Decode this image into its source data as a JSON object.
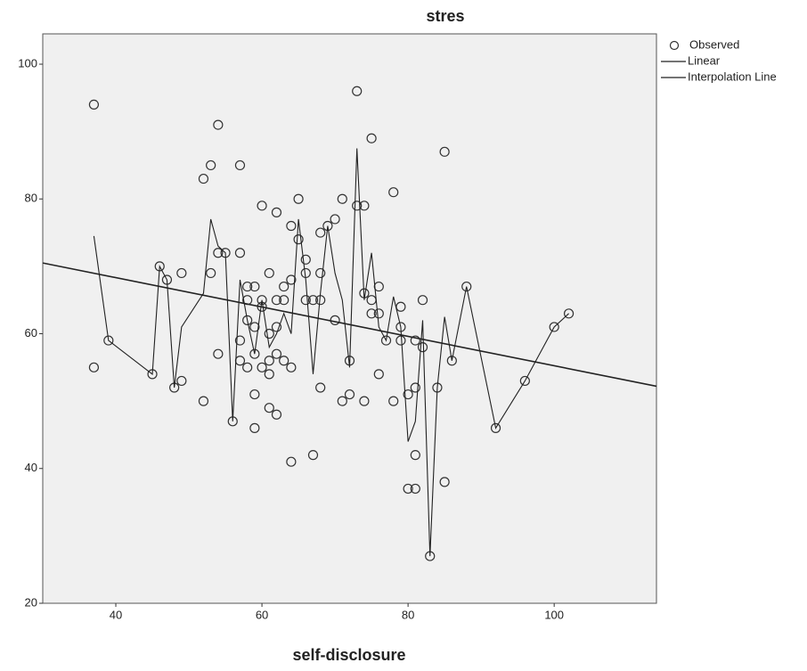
{
  "chart_data": {
    "type": "scatter",
    "title": "stres",
    "x_label": "self-disclosure",
    "xlim": [
      30,
      114
    ],
    "ylim": [
      20,
      104.5
    ],
    "xticks": [
      40,
      60,
      80,
      100
    ],
    "yticks": [
      20,
      40,
      60,
      80,
      100
    ],
    "grid": false,
    "legend_position": "outside-right",
    "background": "#f0f0f0",
    "series": [
      {
        "name": "Observed",
        "kind": "scatter",
        "color": "#333333",
        "x": [
          37,
          37,
          39,
          45,
          46,
          47,
          48,
          49,
          49,
          52,
          52,
          53,
          53,
          54,
          54,
          54,
          55,
          56,
          57,
          57,
          57,
          57,
          58,
          58,
          58,
          58,
          59,
          59,
          59,
          59,
          59,
          60,
          60,
          60,
          60,
          61,
          61,
          61,
          61,
          61,
          62,
          62,
          62,
          62,
          62,
          63,
          63,
          63,
          64,
          64,
          64,
          64,
          65,
          65,
          66,
          66,
          66,
          67,
          67,
          68,
          68,
          68,
          68,
          69,
          70,
          70,
          71,
          71,
          72,
          72,
          73,
          73,
          74,
          74,
          74,
          75,
          75,
          75,
          76,
          76,
          76,
          77,
          78,
          78,
          79,
          79,
          79,
          80,
          80,
          81,
          81,
          81,
          81,
          82,
          82,
          83,
          84,
          85,
          85,
          86,
          88,
          92,
          96,
          100,
          102
        ],
        "values": [
          94,
          55,
          59,
          54,
          70,
          68,
          52,
          69,
          53,
          83,
          50,
          85,
          69,
          91,
          72,
          57,
          72,
          47,
          85,
          72,
          59,
          56,
          67,
          65,
          62,
          55,
          67,
          61,
          57,
          51,
          46,
          79,
          65,
          64,
          55,
          69,
          60,
          56,
          54,
          49,
          78,
          65,
          61,
          57,
          48,
          67,
          65,
          56,
          76,
          68,
          55,
          41,
          80,
          74,
          71,
          69,
          65,
          42,
          65,
          75,
          69,
          65,
          52,
          76,
          77,
          62,
          80,
          50,
          56,
          51,
          96,
          79,
          79,
          66,
          50,
          89,
          65,
          63,
          67,
          63,
          54,
          59,
          81,
          50,
          64,
          61,
          59,
          51,
          37,
          59,
          52,
          42,
          37,
          65,
          58,
          27,
          52,
          87,
          38,
          56,
          67,
          46,
          53,
          61,
          63
        ]
      },
      {
        "name": "Linear",
        "kind": "line",
        "color": "#222222",
        "x": [
          30,
          114
        ],
        "values": [
          70.5,
          52.2
        ]
      },
      {
        "name": "Interpolation Line",
        "kind": "line",
        "color": "#222222",
        "x": [
          37,
          39,
          45,
          46,
          47,
          48,
          49,
          52,
          53,
          54,
          55,
          56,
          57,
          58,
          59,
          60,
          61,
          62,
          63,
          64,
          65,
          66,
          67,
          68,
          69,
          70,
          71,
          72,
          73,
          74,
          75,
          76,
          77,
          78,
          79,
          80,
          81,
          82,
          83,
          84,
          85,
          86,
          88,
          92,
          96,
          100,
          102
        ],
        "values": [
          74.5,
          59,
          54,
          70,
          68,
          52,
          61,
          66,
          77,
          73,
          72,
          47,
          68,
          62,
          57,
          65,
          58,
          60,
          63,
          60,
          77,
          68,
          54,
          66,
          76,
          69,
          65,
          55,
          87.5,
          65,
          72,
          61,
          59,
          65.5,
          61,
          44,
          47,
          62,
          27,
          52,
          62.5,
          56,
          67,
          46,
          53,
          61,
          63
        ]
      }
    ]
  }
}
